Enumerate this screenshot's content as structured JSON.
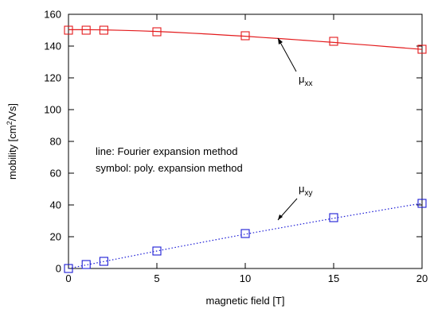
{
  "chart_data": {
    "type": "line",
    "xlabel": "magnetic field [T]",
    "ylabel": {
      "main": "mobility [cm",
      "sup": "2",
      "rest": "/Vs]"
    },
    "xlim": [
      0,
      20
    ],
    "ylim": [
      0,
      160
    ],
    "xticks": [
      0,
      5,
      10,
      15,
      20
    ],
    "yticks": [
      0,
      20,
      40,
      60,
      80,
      100,
      120,
      140,
      160
    ],
    "grid": false,
    "series": [
      {
        "color": "#e31a1c",
        "line_style": "solid",
        "marker": "square",
        "line": {
          "x": [
            0,
            1,
            2,
            3,
            4,
            5,
            6,
            7,
            8,
            9,
            10,
            11,
            12,
            13,
            14,
            15,
            16,
            17,
            18,
            19,
            20
          ],
          "y": [
            150.3,
            150.3,
            150.2,
            149.9,
            149.6,
            149.2,
            148.7,
            148.1,
            147.5,
            146.8,
            146.2,
            145.4,
            144.7,
            143.9,
            143.1,
            142.3,
            141.4,
            140.6,
            139.7,
            138.8,
            137.9
          ]
        },
        "symbols": {
          "x": [
            0,
            1,
            2,
            5,
            10,
            15,
            20
          ],
          "y": [
            150,
            150,
            150,
            149,
            146.5,
            143,
            138
          ]
        }
      },
      {
        "color": "#1c1cd6",
        "line_style": "dotted",
        "marker": "square",
        "line": {
          "x": [
            0,
            1,
            2,
            3,
            4,
            5,
            6,
            7,
            8,
            9,
            10,
            11,
            12,
            13,
            14,
            15,
            16,
            17,
            18,
            19,
            20
          ],
          "y": [
            0,
            2.2,
            4.4,
            6.6,
            8.8,
            11,
            13.2,
            15.3,
            17.4,
            19.5,
            21.6,
            23.6,
            25.6,
            27.6,
            29.6,
            31.6,
            33.5,
            35.4,
            37.3,
            39.2,
            41
          ]
        },
        "symbols": {
          "x": [
            0,
            1,
            2,
            5,
            10,
            15,
            20
          ],
          "y": [
            0,
            2.5,
            4.5,
            11,
            22,
            32,
            41
          ]
        }
      }
    ],
    "annotations": {
      "mu_xx": {
        "base": "μ",
        "sub": "xx"
      },
      "mu_xy": {
        "base": "μ",
        "sub": "xy"
      },
      "text_lines": [
        "line: Fourier expansion method",
        "symbol: poly. expansion method"
      ]
    }
  }
}
